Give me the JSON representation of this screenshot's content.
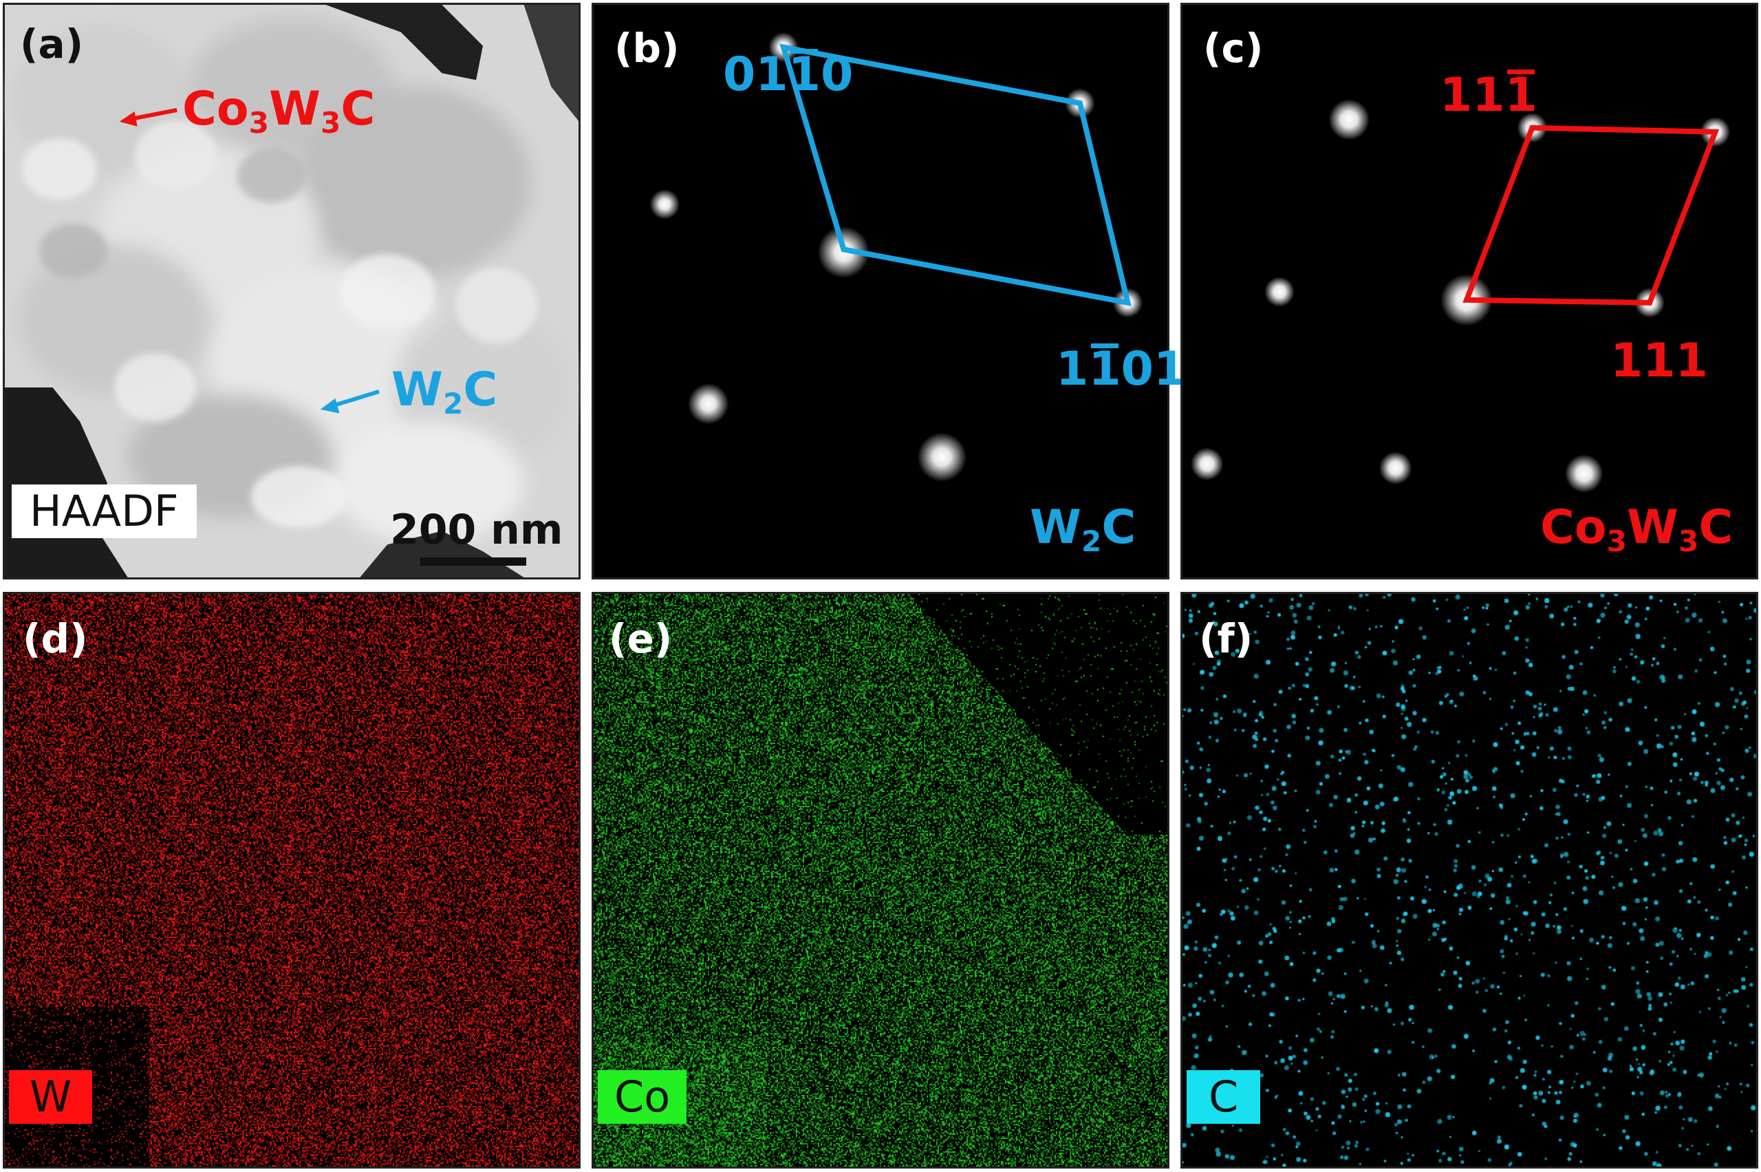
{
  "panels": {
    "a": {
      "label": "(a)",
      "mode_tag": "HAADF",
      "scale_bar": "200 nm",
      "arrow_co": {
        "pre": "Co",
        "s1": "3",
        "mid": "W",
        "s2": "3",
        "post": "C"
      },
      "arrow_w": {
        "pre": "W",
        "s1": "2",
        "post": "C"
      }
    },
    "b": {
      "label": "(b)",
      "index_top": {
        "a": "01",
        "b": "1",
        "c": "0"
      },
      "index_bottom": {
        "a": "1",
        "b": "1",
        "c": "01"
      },
      "phase": {
        "pre": "W",
        "s1": "2",
        "post": "C"
      }
    },
    "c": {
      "label": "(c)",
      "index_top": {
        "a": "11",
        "b": "1"
      },
      "index_bottom": "111",
      "phase": {
        "pre": "Co",
        "s1": "3",
        "mid": "W",
        "s2": "3",
        "post": "C"
      }
    },
    "d": {
      "label": "(d)",
      "element": "W"
    },
    "e": {
      "label": "(e)",
      "element": "Co"
    },
    "f": {
      "label": "(f)",
      "element": "C"
    }
  },
  "colors": {
    "w2c": "#1ba3e0",
    "co3w3c": "#ee1111",
    "map_w": "#ff1818",
    "map_co": "#22dd22",
    "map_c": "#18c8e8"
  }
}
